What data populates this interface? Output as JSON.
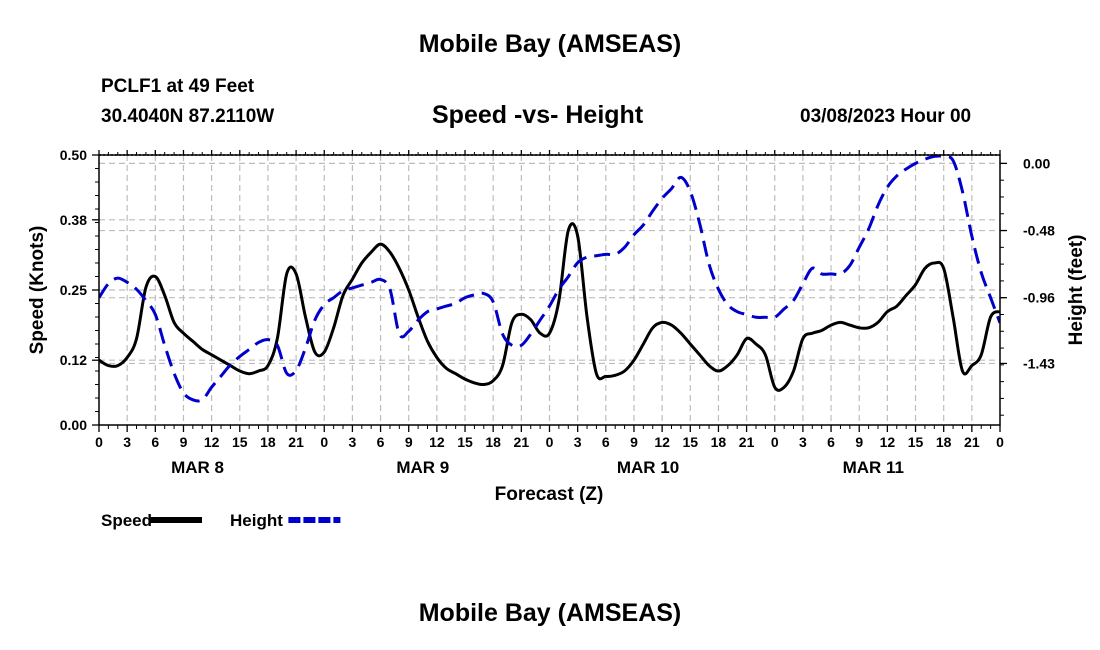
{
  "header": {
    "title": "Mobile Bay (AMSEAS)",
    "station": "PCLF1 at 49 Feet",
    "coords": "30.4040N  87.2110W",
    "subtitle": "Speed -vs- Height",
    "date": "03/08/2023 Hour 00",
    "footer_title": "Mobile Bay (AMSEAS)"
  },
  "chart_data": {
    "type": "line",
    "title": "Speed -vs- Height",
    "xlabel": "Forecast (Z)",
    "ylabel_left": "Speed (Knots)",
    "ylabel_right": "Height (feet)",
    "x_hours_range": [
      0,
      96
    ],
    "x_tick_labels": [
      "0",
      "3",
      "6",
      "9",
      "12",
      "15",
      "18",
      "21",
      "0",
      "3",
      "6",
      "9",
      "12",
      "15",
      "18",
      "21",
      "0",
      "3",
      "6",
      "9",
      "12",
      "15",
      "18",
      "21",
      "0",
      "3",
      "6",
      "9",
      "12",
      "15",
      "18",
      "21",
      "0"
    ],
    "day_labels": [
      {
        "label": "MAR 8",
        "hour": 10.5
      },
      {
        "label": "MAR 9",
        "hour": 34.5
      },
      {
        "label": "MAR 10",
        "hour": 58.5
      },
      {
        "label": "MAR 11",
        "hour": 82.5
      }
    ],
    "ylim_left": [
      0,
      0.5
    ],
    "y_ticks_left": [
      "0.00",
      "0.12",
      "0.25",
      "0.38",
      "0.50"
    ],
    "ylim_right": [
      -1.87,
      0.06
    ],
    "y_ticks_right": [
      "0.00",
      "-0.48",
      "-0.96",
      "-1.43"
    ],
    "grid": true,
    "series": [
      {
        "name": "Speed",
        "color": "#000000",
        "dash": "solid",
        "axis": "left",
        "x": [
          0,
          1,
          2,
          3,
          4,
          5,
          6,
          7,
          8,
          9,
          10,
          11,
          12,
          13,
          14,
          15,
          16,
          17,
          18,
          19,
          20,
          21,
          22,
          23,
          24,
          25,
          26,
          27,
          28,
          29,
          30,
          31,
          32,
          33,
          34,
          35,
          36,
          37,
          38,
          39,
          40,
          41,
          42,
          43,
          44,
          45,
          46,
          47,
          48,
          49,
          50,
          51,
          52,
          53,
          54,
          55,
          56,
          57,
          58,
          59,
          60,
          61,
          62,
          63,
          64,
          65,
          66,
          67,
          68,
          69,
          70,
          71,
          72,
          73,
          74,
          75,
          76,
          77,
          78,
          79,
          80,
          81,
          82,
          83,
          84,
          85,
          86,
          87,
          88,
          89,
          90,
          91,
          92,
          93,
          94,
          95,
          96
        ],
        "values": [
          0.12,
          0.11,
          0.11,
          0.125,
          0.16,
          0.255,
          0.275,
          0.24,
          0.19,
          0.17,
          0.155,
          0.14,
          0.13,
          0.12,
          0.11,
          0.1,
          0.095,
          0.1,
          0.11,
          0.16,
          0.28,
          0.28,
          0.2,
          0.135,
          0.135,
          0.18,
          0.24,
          0.27,
          0.3,
          0.32,
          0.335,
          0.32,
          0.29,
          0.25,
          0.2,
          0.155,
          0.125,
          0.105,
          0.095,
          0.085,
          0.078,
          0.075,
          0.082,
          0.11,
          0.19,
          0.205,
          0.195,
          0.17,
          0.17,
          0.23,
          0.36,
          0.35,
          0.2,
          0.095,
          0.09,
          0.092,
          0.1,
          0.12,
          0.15,
          0.18,
          0.19,
          0.185,
          0.17,
          0.15,
          0.13,
          0.11,
          0.1,
          0.11,
          0.13,
          0.16,
          0.15,
          0.13,
          0.07,
          0.07,
          0.1,
          0.16,
          0.17,
          0.175,
          0.185,
          0.19,
          0.185,
          0.18,
          0.18,
          0.19,
          0.21,
          0.22,
          0.24,
          0.26,
          0.29,
          0.3,
          0.29,
          0.2,
          0.1,
          0.11,
          0.13,
          0.2,
          0.21
        ]
      },
      {
        "name": "Height",
        "color": "#0000cc",
        "dash": "dashed",
        "axis": "right",
        "x": [
          0,
          1,
          2,
          3,
          4,
          5,
          6,
          7,
          8,
          9,
          10,
          11,
          12,
          13,
          14,
          15,
          16,
          17,
          18,
          19,
          20,
          21,
          22,
          23,
          24,
          25,
          26,
          27,
          28,
          29,
          30,
          31,
          32,
          33,
          34,
          35,
          36,
          37,
          38,
          39,
          40,
          41,
          42,
          43,
          44,
          45,
          46,
          47,
          48,
          49,
          50,
          51,
          52,
          53,
          54,
          55,
          56,
          57,
          58,
          59,
          60,
          61,
          62,
          63,
          64,
          65,
          66,
          67,
          68,
          69,
          70,
          71,
          72,
          73,
          74,
          75,
          76,
          77,
          78,
          79,
          80,
          81,
          82,
          83,
          84,
          85,
          86,
          87,
          88,
          89,
          90,
          91,
          92,
          93,
          94,
          95,
          96
        ],
        "values": [
          -0.96,
          -0.86,
          -0.82,
          -0.85,
          -0.9,
          -0.98,
          -1.08,
          -1.3,
          -1.5,
          -1.64,
          -1.69,
          -1.69,
          -1.6,
          -1.52,
          -1.44,
          -1.38,
          -1.33,
          -1.28,
          -1.26,
          -1.3,
          -1.5,
          -1.48,
          -1.32,
          -1.12,
          -1.01,
          -0.96,
          -0.91,
          -0.89,
          -0.87,
          -0.85,
          -0.83,
          -0.9,
          -1.22,
          -1.2,
          -1.12,
          -1.06,
          -1.04,
          -1.02,
          -1,
          -0.96,
          -0.94,
          -0.93,
          -0.99,
          -1.22,
          -1.3,
          -1.3,
          -1.22,
          -1.12,
          -1.02,
          -0.9,
          -0.81,
          -0.71,
          -0.67,
          -0.66,
          -0.65,
          -0.65,
          -0.6,
          -0.51,
          -0.44,
          -0.34,
          -0.25,
          -0.18,
          -0.1,
          -0.2,
          -0.43,
          -0.72,
          -0.9,
          -1.01,
          -1.06,
          -1.08,
          -1.1,
          -1.1,
          -1.1,
          -1.04,
          -0.98,
          -0.86,
          -0.75,
          -0.79,
          -0.79,
          -0.79,
          -0.73,
          -0.6,
          -0.47,
          -0.3,
          -0.17,
          -0.09,
          -0.04,
          0.0,
          0.03,
          0.05,
          0.05,
          0.02,
          -0.2,
          -0.52,
          -0.78,
          -0.96,
          -1.14
        ]
      }
    ],
    "legend_placement": "bottom-left"
  }
}
